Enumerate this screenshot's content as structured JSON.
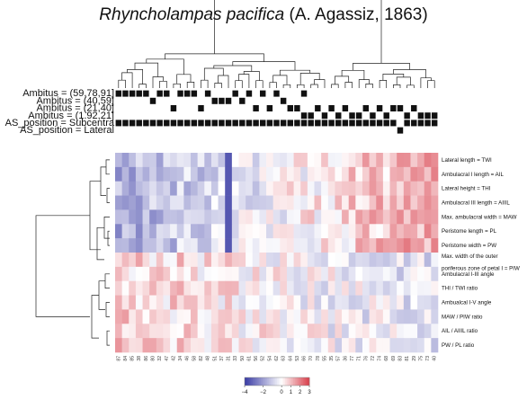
{
  "title": {
    "species": "Rhyncholampas pacifica",
    "authority": "(A. Agassiz, 1863)"
  },
  "chart_data": {
    "type": "heatmap",
    "title": "Rhyncholampas pacifica (A. Agassiz, 1863)",
    "annotation_rows": [
      "Ambitus = (59,78,91]",
      "Ambitus = (40,59]",
      "Ambitus = (21,40]",
      "Ambitus = (1.92,21]",
      "AS_position = Subcentra",
      "AS_position = Lateral"
    ],
    "variables": [
      "Lateral length = TWI",
      "Ambulacral I length = AIL",
      "Lateral height = THI",
      "Ambulacral III length = AIIIL",
      "Max. ambulacral width = MAW",
      "Peristome length = PL",
      "Peristome width = PW",
      "Max. width of the outer",
      "poriferous zone of petal I = PIW",
      "Ambulacral I-III angle",
      "THI / TWI ratio",
      "Ambualcal I-V angle",
      "MAW / PIW ratio",
      "AIL / AIIIL ratio",
      "PW / PL ratio"
    ],
    "specimens": [
      "87",
      "84",
      "85",
      "38",
      "86",
      "80",
      "32",
      "47",
      "42",
      "34",
      "46",
      "58",
      "82",
      "48",
      "51",
      "37",
      "31",
      "33",
      "50",
      "61",
      "56",
      "52",
      "54",
      "62",
      "63",
      "64",
      "53",
      "66",
      "70",
      "78",
      "55",
      "35",
      "57",
      "36",
      "77",
      "71",
      "76",
      "72",
      "74",
      "68",
      "69",
      "83",
      "81",
      "29",
      "75",
      "73",
      "40"
    ],
    "color_scale": {
      "colors": [
        "#3d3fa6",
        "#ffffff",
        "#d9434f"
      ],
      "ticks": [
        -4,
        -2,
        0,
        1,
        2,
        3
      ]
    },
    "legend": "bottom"
  }
}
